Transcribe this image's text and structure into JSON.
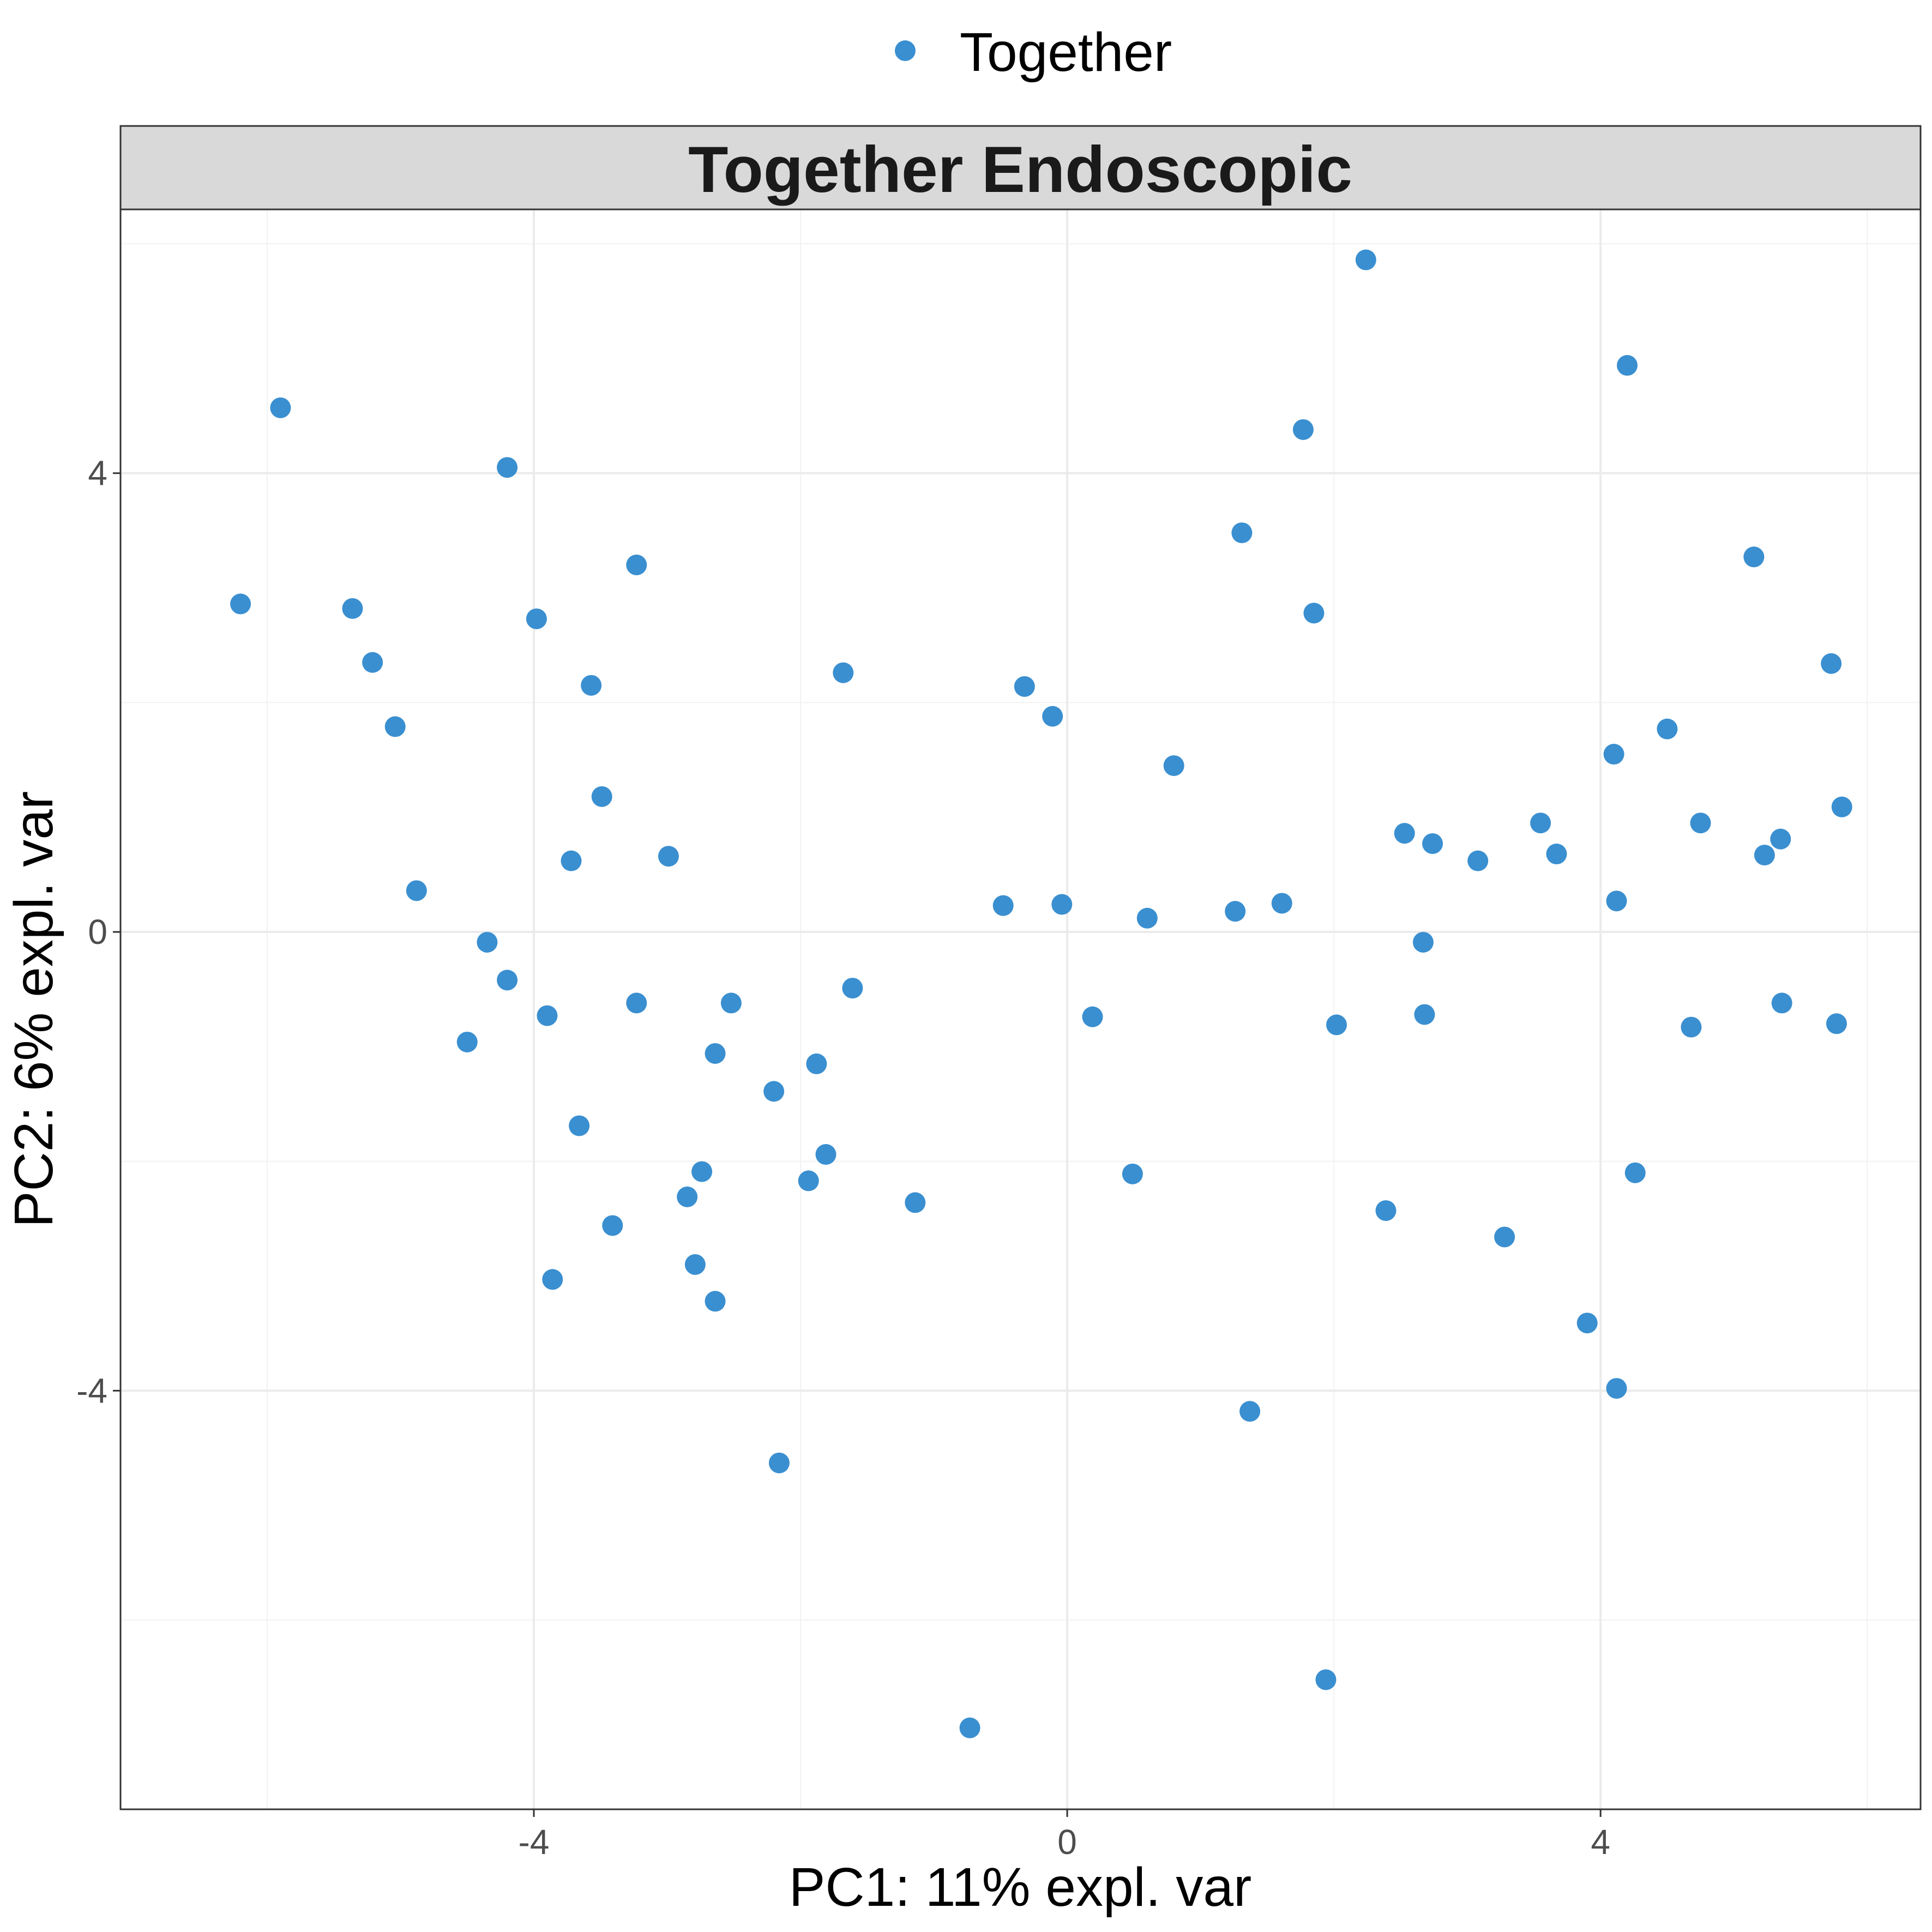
{
  "chart_data": {
    "type": "scatter",
    "title": "Together Endoscopic",
    "xlabel": "PC1: 11% expl. var",
    "ylabel": "PC2: 6% expl. var",
    "xlim": [
      -7.1,
      6.4
    ],
    "ylim": [
      -7.65,
      6.3
    ],
    "x_ticks": [
      -4,
      0,
      4
    ],
    "y_ticks": [
      -4,
      0,
      4
    ],
    "x_tick_labels": [
      "-4",
      "0",
      "4"
    ],
    "y_tick_labels": [
      "-4",
      "0",
      "4"
    ],
    "grid": true,
    "legend_position": "top",
    "point_color": "#3A8FD0",
    "series": [
      {
        "name": "Together",
        "points": [
          [
            -6.2,
            2.86
          ],
          [
            -5.9,
            4.57
          ],
          [
            -5.36,
            2.82
          ],
          [
            -5.21,
            2.35
          ],
          [
            -5.04,
            1.79
          ],
          [
            -4.88,
            0.36
          ],
          [
            -4.5,
            -0.96
          ],
          [
            -4.35,
            -0.09
          ],
          [
            -4.2,
            4.05
          ],
          [
            -4.2,
            -0.42
          ],
          [
            -3.98,
            2.73
          ],
          [
            -3.9,
            -0.73
          ],
          [
            -3.86,
            -3.03
          ],
          [
            -3.72,
            0.62
          ],
          [
            -3.66,
            -1.69
          ],
          [
            -3.57,
            2.15
          ],
          [
            -3.49,
            1.18
          ],
          [
            -3.41,
            -2.56
          ],
          [
            -3.23,
            3.2
          ],
          [
            -3.23,
            -0.62
          ],
          [
            -2.99,
            0.66
          ],
          [
            -2.85,
            -2.31
          ],
          [
            -2.79,
            -2.9
          ],
          [
            -2.74,
            -2.09
          ],
          [
            -2.64,
            -3.22
          ],
          [
            -2.64,
            -1.06
          ],
          [
            -2.52,
            -0.62
          ],
          [
            -2.2,
            -1.39
          ],
          [
            -2.16,
            -4.63
          ],
          [
            -1.94,
            -2.17
          ],
          [
            -1.88,
            -1.15
          ],
          [
            -1.81,
            -1.94
          ],
          [
            -1.68,
            2.26
          ],
          [
            -1.61,
            -0.49
          ],
          [
            -1.14,
            -2.36
          ],
          [
            -0.73,
            -6.94
          ],
          [
            -0.48,
            0.23
          ],
          [
            -0.32,
            2.14
          ],
          [
            -0.11,
            1.88
          ],
          [
            -0.04,
            0.24
          ],
          [
            0.19,
            -0.74
          ],
          [
            0.49,
            -2.11
          ],
          [
            0.6,
            0.12
          ],
          [
            0.8,
            1.45
          ],
          [
            1.26,
            0.18
          ],
          [
            1.31,
            3.48
          ],
          [
            1.37,
            -4.18
          ],
          [
            1.61,
            0.25
          ],
          [
            1.77,
            4.38
          ],
          [
            1.85,
            2.78
          ],
          [
            1.94,
            -6.52
          ],
          [
            2.02,
            -0.81
          ],
          [
            2.24,
            5.86
          ],
          [
            2.39,
            -2.43
          ],
          [
            2.53,
            0.86
          ],
          [
            2.67,
            -0.09
          ],
          [
            2.68,
            -0.72
          ],
          [
            2.74,
            0.77
          ],
          [
            3.08,
            0.62
          ],
          [
            3.28,
            -2.66
          ],
          [
            3.55,
            0.95
          ],
          [
            3.67,
            0.68
          ],
          [
            3.9,
            -3.41
          ],
          [
            4.1,
            1.55
          ],
          [
            4.12,
            0.27
          ],
          [
            4.12,
            -3.98
          ],
          [
            4.2,
            4.94
          ],
          [
            4.26,
            -2.1
          ],
          [
            4.5,
            1.77
          ],
          [
            4.68,
            -0.83
          ],
          [
            4.75,
            0.95
          ],
          [
            5.15,
            3.27
          ],
          [
            5.23,
            0.67
          ],
          [
            5.35,
            0.81
          ],
          [
            5.36,
            -0.62
          ],
          [
            5.73,
            2.34
          ],
          [
            5.77,
            -0.8
          ],
          [
            5.81,
            1.09
          ]
        ]
      }
    ]
  }
}
